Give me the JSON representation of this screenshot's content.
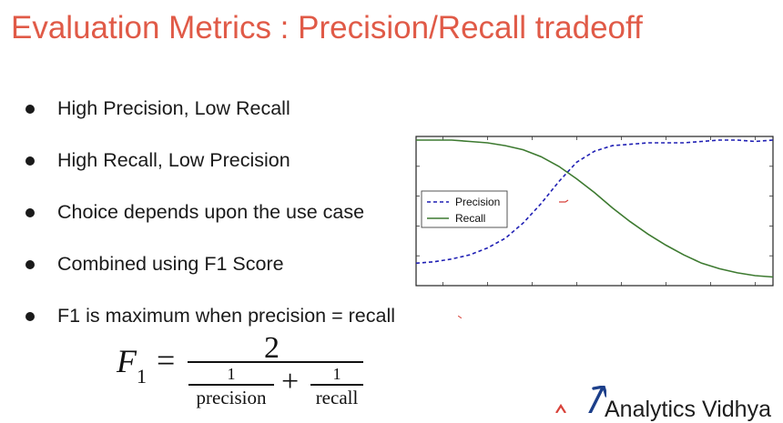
{
  "slide": {
    "title": "Evaluation Metrics : Precision/Recall tradeoff",
    "title_color": "#e05a47",
    "text_color": "#1a1a1a"
  },
  "bullets": [
    "High Precision, Low Recall",
    "High Recall, Low Precision",
    "Choice depends upon the use case",
    "Combined using F1 Score",
    "F1 is maximum when precision = recall"
  ],
  "formula": {
    "lhs": "F",
    "lhs_sub": "1",
    "equals": "=",
    "numerator": "2",
    "term1_num": "1",
    "term1_den": "precision",
    "plus": "+",
    "term2_num": "1",
    "term2_den": "recall"
  },
  "chart_data": {
    "type": "line",
    "legend_position": "center-left",
    "grid": false,
    "x": [
      0,
      0.05,
      0.1,
      0.15,
      0.2,
      0.25,
      0.3,
      0.35,
      0.4,
      0.45,
      0.5,
      0.55,
      0.6,
      0.65,
      0.7,
      0.75,
      0.8,
      0.85,
      0.9,
      0.95,
      1.0
    ],
    "xlim": [
      0,
      1
    ],
    "ylim": [
      0,
      1
    ],
    "series": [
      {
        "name": "Precision",
        "color": "#1f1fb4",
        "style": "dashed",
        "values": [
          0.11,
          0.12,
          0.14,
          0.17,
          0.22,
          0.29,
          0.4,
          0.54,
          0.7,
          0.84,
          0.92,
          0.96,
          0.97,
          0.98,
          0.98,
          0.98,
          0.99,
          1.0,
          1.0,
          0.99,
          1.0
        ]
      },
      {
        "name": "Recall",
        "color": "#3d7a30",
        "style": "solid",
        "values": [
          1.0,
          1.0,
          1.0,
          0.99,
          0.98,
          0.96,
          0.93,
          0.88,
          0.81,
          0.72,
          0.62,
          0.51,
          0.41,
          0.32,
          0.24,
          0.17,
          0.11,
          0.07,
          0.04,
          0.02,
          0.01
        ]
      }
    ]
  },
  "watermark": {
    "text": "Analytics Vidhya",
    "arrow_color": "#1c3f8a",
    "accent_color": "#d8423a"
  }
}
